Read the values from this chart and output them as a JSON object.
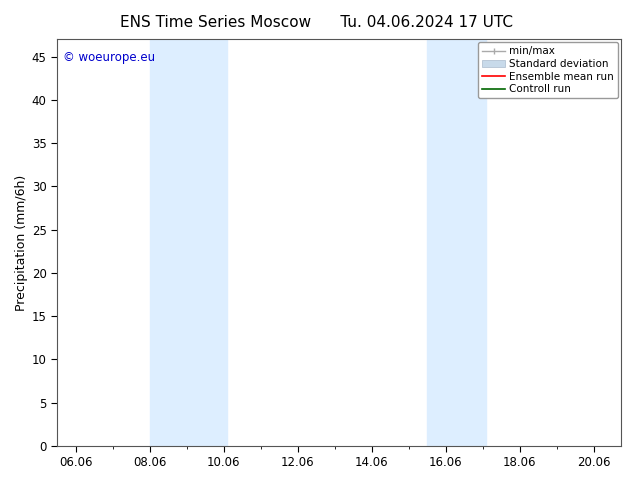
{
  "title_left": "ENS Time Series Moscow",
  "title_right": "Tu. 04.06.2024 17 UTC",
  "ylabel": "Precipitation (mm/6h)",
  "xlim_left": 5.5,
  "xlim_right": 20.75,
  "ylim_bottom": 0,
  "ylim_top": 47,
  "yticks": [
    0,
    5,
    10,
    15,
    20,
    25,
    30,
    35,
    40,
    45
  ],
  "xtick_labels": [
    "06.06",
    "08.06",
    "10.06",
    "12.06",
    "14.06",
    "16.06",
    "18.06",
    "20.06"
  ],
  "xtick_positions": [
    6,
    8,
    10,
    12,
    14,
    16,
    18,
    20
  ],
  "shaded_bands": [
    {
      "x_start": 8.0,
      "x_end": 10.08
    },
    {
      "x_start": 15.5,
      "x_end": 17.08
    }
  ],
  "shade_color": "#ddeeff",
  "background_color": "#ffffff",
  "watermark_text": "© woeurope.eu",
  "watermark_color": "#0000cc",
  "title_fontsize": 11,
  "tick_fontsize": 8.5,
  "ylabel_fontsize": 9,
  "legend_fontsize": 7.5,
  "minmax_color": "#aaaaaa",
  "std_color": "#c8daea",
  "ens_color": "#ff0000",
  "ctrl_color": "#006600"
}
